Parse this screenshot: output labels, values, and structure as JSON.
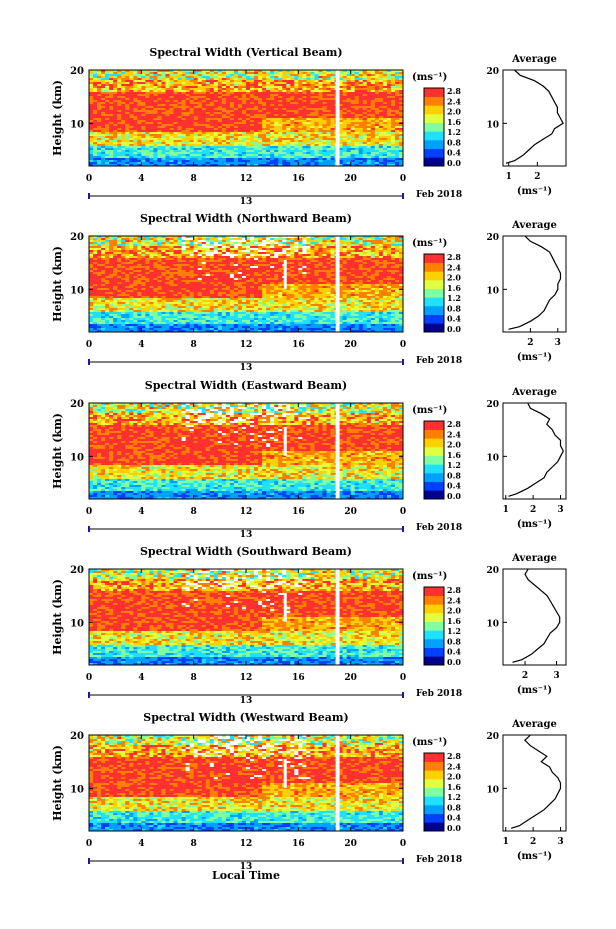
{
  "figure": {
    "xlabel": "Local Time",
    "date_label": "Feb 2018",
    "day_label": "13",
    "average_title": "Average",
    "unit_label": "(ms⁻¹)",
    "colorbar_ticks": [
      "0.0",
      "0.4",
      "0.8",
      "1.2",
      "1.6",
      "2.0",
      "2.4",
      "2.8"
    ],
    "colormap": [
      "#00008f",
      "#0040ff",
      "#00a0ff",
      "#20e0ff",
      "#80ffa0",
      "#e0ff40",
      "#ffd000",
      "#ff8000",
      "#ff3030"
    ],
    "gap_color": "#ffffff"
  },
  "chart_data": [
    {
      "type": "heatmap",
      "title": "Spectral Width (Vertical Beam)",
      "ylabel": "Height (km)",
      "x_ticks": [
        "0",
        "4",
        "8",
        "12",
        "16",
        "20",
        "0"
      ],
      "xlim": [
        0,
        24
      ],
      "ylim": [
        2,
        20
      ],
      "y_ticks": [
        "20",
        "10"
      ],
      "color_range": [
        0.0,
        2.8
      ],
      "data_gap_hours": [
        19.0
      ],
      "average": {
        "x_ticks": [
          "1",
          "2"
        ],
        "xlim": [
          0.8,
          3.0
        ],
        "height_km": [
          2.5,
          3,
          4,
          5,
          6,
          7,
          8,
          9,
          10,
          11,
          12,
          13,
          14,
          15,
          16,
          17,
          18,
          19,
          20
        ],
        "width_ms": [
          0.9,
          1.2,
          1.5,
          1.7,
          1.9,
          2.2,
          2.5,
          2.6,
          2.9,
          2.8,
          2.7,
          2.7,
          2.6,
          2.5,
          2.4,
          2.2,
          1.9,
          1.4,
          1.2
        ]
      }
    },
    {
      "type": "heatmap",
      "title": "Spectral Width (Northward Beam)",
      "ylabel": "Height (km)",
      "x_ticks": [
        "0",
        "4",
        "8",
        "12",
        "16",
        "20",
        "0"
      ],
      "xlim": [
        0,
        24
      ],
      "ylim": [
        2,
        20
      ],
      "y_ticks": [
        "20",
        "10"
      ],
      "color_range": [
        0.0,
        2.8
      ],
      "data_gap_hours": [
        15.0,
        19.0
      ],
      "average": {
        "x_ticks": [
          "2",
          "3"
        ],
        "xlim": [
          1.0,
          3.3
        ],
        "height_km": [
          2.5,
          3,
          4,
          5,
          6,
          7,
          8,
          9,
          10,
          11,
          12,
          13,
          14,
          15,
          16,
          17,
          18,
          19,
          20
        ],
        "width_ms": [
          1.2,
          1.6,
          2.0,
          2.3,
          2.5,
          2.6,
          2.7,
          2.9,
          3.0,
          3.0,
          3.1,
          3.1,
          3.0,
          2.9,
          2.8,
          2.7,
          2.4,
          2.0,
          1.8
        ]
      }
    },
    {
      "type": "heatmap",
      "title": "Spectral Width (Eastward Beam)",
      "ylabel": "Height (km)",
      "x_ticks": [
        "0",
        "4",
        "8",
        "12",
        "16",
        "20",
        "0"
      ],
      "xlim": [
        0,
        24
      ],
      "ylim": [
        2,
        20
      ],
      "y_ticks": [
        "20",
        "10"
      ],
      "color_range": [
        0.0,
        2.8
      ],
      "data_gap_hours": [
        15.0,
        19.0
      ],
      "average": {
        "x_ticks": [
          "1",
          "2",
          "3"
        ],
        "xlim": [
          0.9,
          3.2
        ],
        "height_km": [
          2.5,
          3,
          4,
          5,
          6,
          7,
          8,
          9,
          10,
          11,
          12,
          13,
          14,
          15,
          16,
          17,
          18,
          19,
          20
        ],
        "width_ms": [
          1.1,
          1.4,
          1.8,
          2.1,
          2.4,
          2.5,
          2.7,
          2.9,
          3.0,
          3.1,
          3.0,
          3.0,
          2.8,
          2.7,
          2.5,
          2.6,
          2.3,
          1.9,
          1.8
        ]
      }
    },
    {
      "type": "heatmap",
      "title": "Spectral Width (Southward Beam)",
      "ylabel": "Height (km)",
      "x_ticks": [
        "0",
        "4",
        "8",
        "12",
        "16",
        "20",
        "0"
      ],
      "xlim": [
        0,
        24
      ],
      "ylim": [
        2,
        20
      ],
      "y_ticks": [
        "20",
        "10"
      ],
      "color_range": [
        0.0,
        2.8
      ],
      "data_gap_hours": [
        15.0,
        19.0
      ],
      "average": {
        "x_ticks": [
          "2",
          "3"
        ],
        "xlim": [
          1.3,
          3.3
        ],
        "height_km": [
          2.5,
          3,
          4,
          5,
          6,
          7,
          8,
          9,
          10,
          11,
          12,
          13,
          14,
          15,
          16,
          17,
          18,
          19,
          20
        ],
        "width_ms": [
          1.6,
          1.9,
          2.2,
          2.4,
          2.6,
          2.7,
          2.8,
          3.0,
          3.1,
          3.1,
          3.0,
          2.9,
          2.8,
          2.7,
          2.5,
          2.3,
          2.1,
          2.0,
          2.1
        ]
      }
    },
    {
      "type": "heatmap",
      "title": "Spectral Width (Westward Beam)",
      "ylabel": "Height (km)",
      "x_ticks": [
        "0",
        "4",
        "8",
        "12",
        "16",
        "20",
        "0"
      ],
      "xlim": [
        0,
        24
      ],
      "ylim": [
        2,
        20
      ],
      "y_ticks": [
        "20",
        "10"
      ],
      "color_range": [
        0.0,
        2.8
      ],
      "data_gap_hours": [
        15.0,
        19.0
      ],
      "average": {
        "x_ticks": [
          "1",
          "2",
          "3"
        ],
        "xlim": [
          0.9,
          3.2
        ],
        "height_km": [
          2.5,
          3,
          4,
          5,
          6,
          7,
          8,
          9,
          10,
          11,
          12,
          13,
          14,
          15,
          16,
          17,
          18,
          19,
          20
        ],
        "width_ms": [
          1.2,
          1.5,
          1.8,
          2.1,
          2.4,
          2.6,
          2.8,
          2.9,
          3.0,
          3.0,
          2.9,
          2.7,
          2.6,
          2.3,
          2.5,
          2.2,
          1.9,
          1.7,
          1.9
        ]
      }
    }
  ]
}
